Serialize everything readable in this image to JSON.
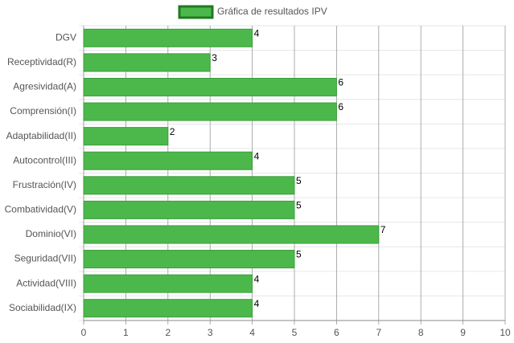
{
  "chart_data": {
    "type": "bar",
    "orientation": "horizontal",
    "categories": [
      "DGV",
      "Receptividad(R)",
      "Agresividad(A)",
      "Comprensión(I)",
      "Adaptabilidad(II)",
      "Autocontrol(III)",
      "Frustración(IV)",
      "Combatividad(V)",
      "Dominio(VI)",
      "Seguridad(VII)",
      "Actividad(VIII)",
      "Sociabilidad(IX)"
    ],
    "series": [
      {
        "name": "Gráfica de resultados IPV",
        "color": "#4cb84c",
        "values": [
          4,
          3,
          6,
          6,
          2,
          4,
          5,
          5,
          7,
          5,
          4,
          4
        ]
      }
    ],
    "xlim": [
      0,
      10
    ],
    "xticks": [
      0,
      1,
      2,
      3,
      4,
      5,
      6,
      7,
      8,
      9,
      10
    ],
    "grid": true,
    "legend": "top"
  }
}
